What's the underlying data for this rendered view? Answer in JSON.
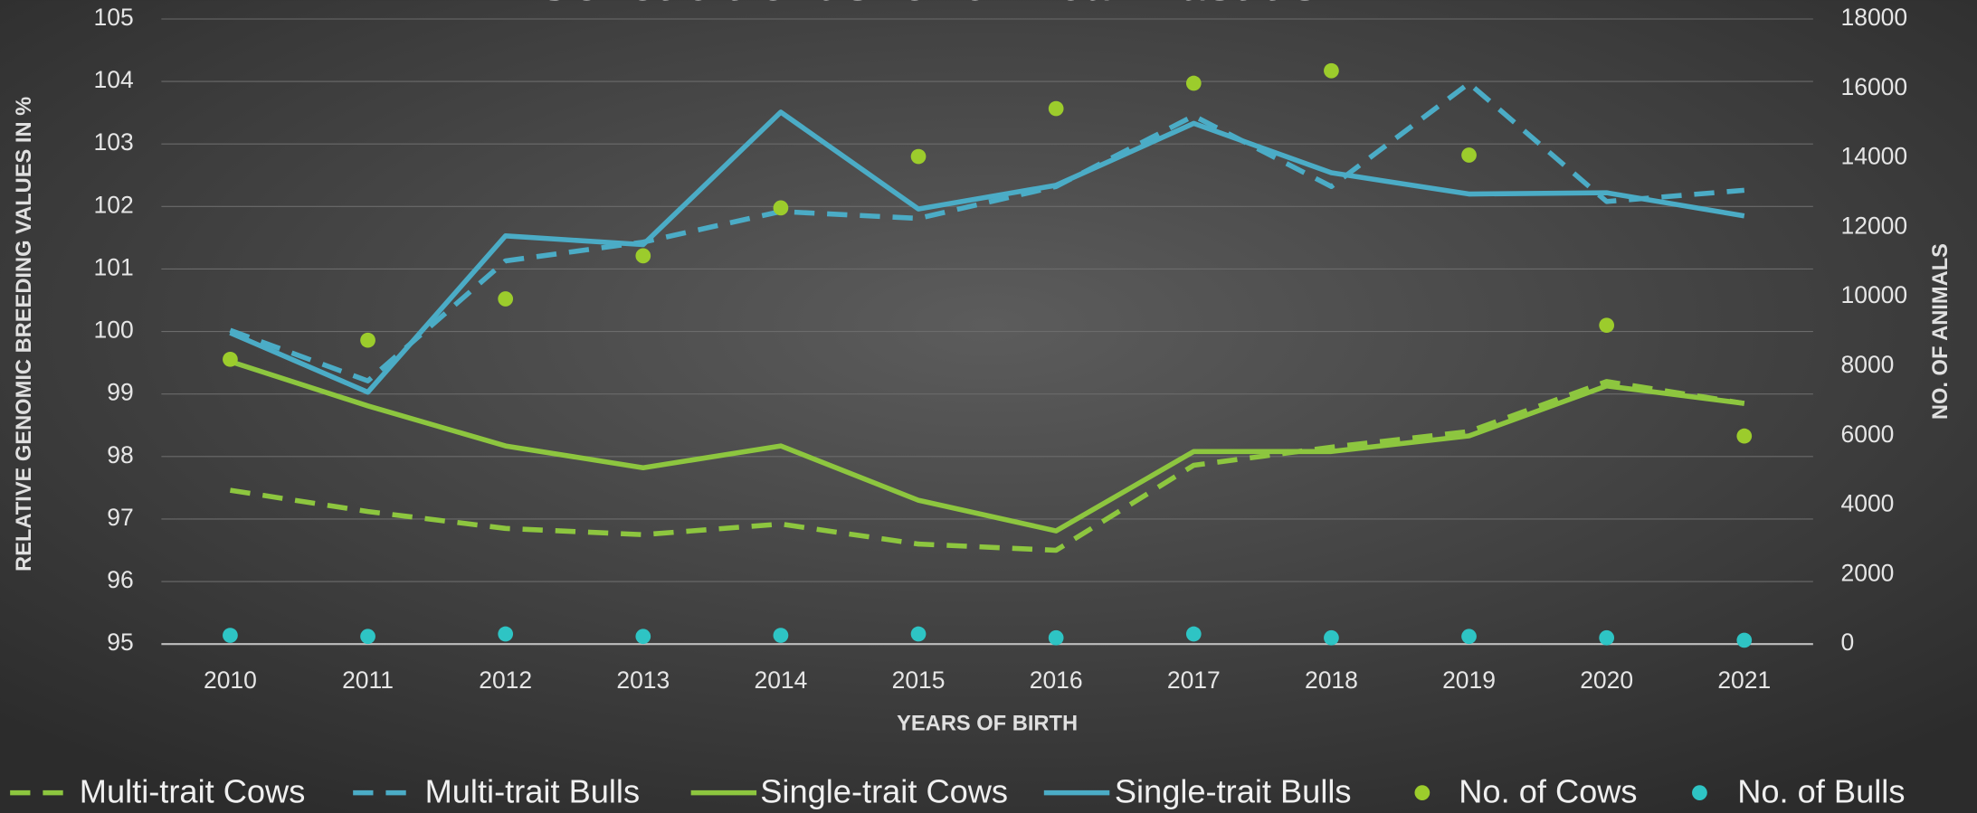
{
  "chart_data": {
    "type": "line",
    "title": "Genetic trends for clinical mastitis",
    "x_label": "YEARS OF BIRTH",
    "y_label": "RELATIVE GENOMIC BREEDING VALUES IN %",
    "y2_label": "NO. OF ANIMALS",
    "categories": [
      2010,
      2011,
      2012,
      2013,
      2014,
      2015,
      2016,
      2017,
      2018,
      2019,
      2020,
      2021
    ],
    "ylim": [
      95,
      105
    ],
    "yticks": [
      95,
      96,
      97,
      98,
      99,
      100,
      101,
      102,
      103,
      104,
      105
    ],
    "y2lim": [
      0,
      18000
    ],
    "y2ticks": [
      0,
      2000,
      4000,
      6000,
      8000,
      10000,
      12000,
      14000,
      16000,
      18000
    ],
    "grid": true,
    "legend": "bottom",
    "series": [
      {
        "name": "Multi-trait Cows",
        "color": "#8dc63f",
        "style": "dashed",
        "values": [
          97.46,
          97.12,
          96.85,
          96.75,
          96.92,
          96.6,
          96.5,
          97.86,
          98.15,
          98.4,
          99.2,
          98.85
        ]
      },
      {
        "name": "Multi-trait Bulls",
        "color": "#4bacc6",
        "style": "dashed",
        "values": [
          100.02,
          99.21,
          101.13,
          101.43,
          101.92,
          101.81,
          102.32,
          103.45,
          102.32,
          103.97,
          102.08,
          102.26
        ]
      },
      {
        "name": "Single-trait Cows",
        "color": "#8dc63f",
        "style": "solid",
        "values": [
          99.52,
          98.81,
          98.17,
          97.82,
          98.17,
          97.3,
          96.81,
          98.08,
          98.08,
          98.33,
          99.13,
          98.85
        ]
      },
      {
        "name": "Single-trait Bulls",
        "color": "#4bacc6",
        "style": "solid",
        "values": [
          99.98,
          99.03,
          101.53,
          101.39,
          103.51,
          101.96,
          102.34,
          103.33,
          102.54,
          102.2,
          102.22,
          101.85
        ]
      },
      {
        "name": "No. of Cows",
        "color": "#9ccc2c",
        "style": "markers",
        "axis": "y2",
        "values": [
          8200,
          8750,
          9940,
          11180,
          12560,
          14040,
          15420,
          16150,
          16510,
          14080,
          9180,
          5990
        ]
      },
      {
        "name": "No. of Bulls",
        "color": "#2ec4c4",
        "style": "markers",
        "axis": "y2",
        "values": [
          250,
          220,
          290,
          220,
          250,
          290,
          180,
          290,
          180,
          220,
          180,
          110
        ]
      }
    ]
  }
}
